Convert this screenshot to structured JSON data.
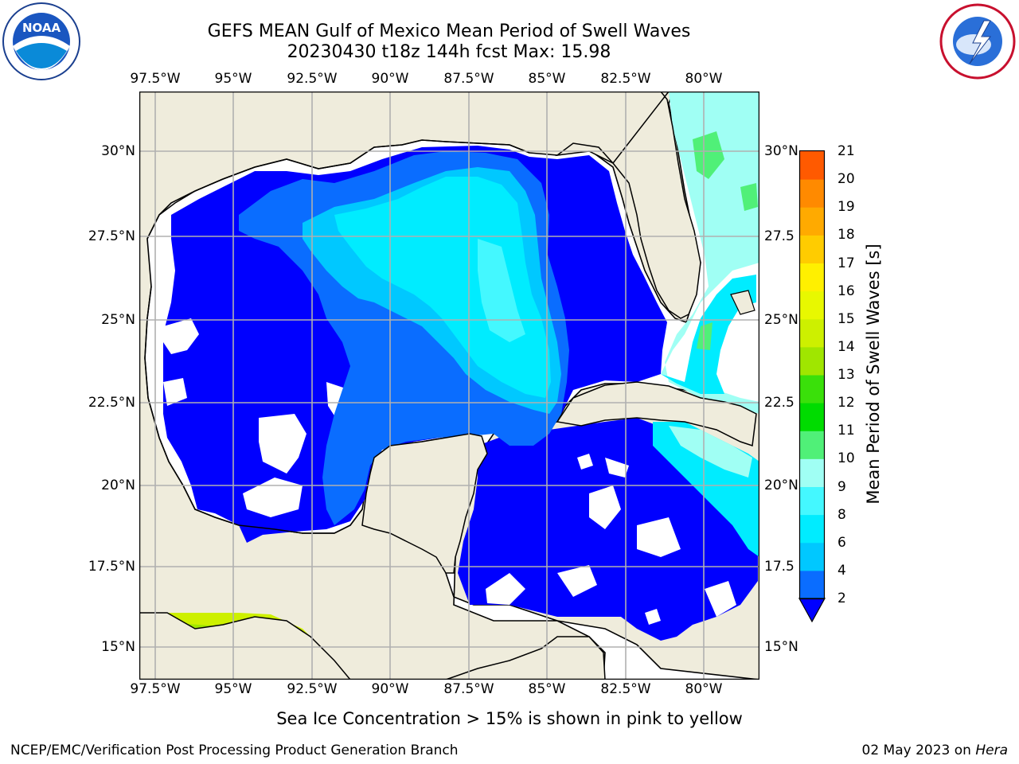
{
  "header": {
    "title": "GEFS MEAN Gulf of Mexico Mean Period of Swell Waves",
    "subtitle": "20230430 t18z 144h fcst   Max: 15.98"
  },
  "logos": {
    "left": {
      "icon": "noaa-logo",
      "text": "NOAA",
      "ring_text": "NATIONAL OCEANIC AND ATMOSPHERIC ADMINISTRATION · U.S. DEPARTMENT OF COMMERCE"
    },
    "right": {
      "icon": "nws-logo",
      "ring_text": "NATIONAL WEATHER SERVICE"
    }
  },
  "map": {
    "longitude_ticks": [
      "97.5°W",
      "95°W",
      "92.5°W",
      "90°W",
      "87.5°W",
      "85°W",
      "82.5°W",
      "80°W"
    ],
    "latitude_ticks_left": [
      "30°N",
      "27.5°N",
      "25°N",
      "22.5°N",
      "20°N",
      "17.5°N",
      "15°N"
    ],
    "latitude_ticks_right": [
      "30°N",
      "27.5",
      "25°N",
      "22.5",
      "20°N",
      "17.5",
      "15°N"
    ],
    "lon_range": [
      -98,
      -78
    ],
    "lat_range": [
      14,
      32
    ],
    "grid": true,
    "land_color": "#efecdc",
    "ocean_fill": "swell-period contours"
  },
  "colorbar": {
    "label": "Mean Period of Swell Waves [s]",
    "ticks": [
      "2",
      "4",
      "6",
      "8",
      "9",
      "10",
      "11",
      "12",
      "13",
      "14",
      "15",
      "16",
      "17",
      "18",
      "19",
      "20",
      "21"
    ],
    "colors": [
      "#0a6dff",
      "#00c8ff",
      "#00ecff",
      "#44f8ff",
      "#a0fff4",
      "#50f078",
      "#00dc00",
      "#3ae00a",
      "#a0e600",
      "#cdf000",
      "#e8f800",
      "#fff000",
      "#ffcc00",
      "#ffaa00",
      "#ff8a00",
      "#ff5a00",
      "#ff2a00",
      "#ff0000"
    ],
    "extend_min_color": "#0000ff"
  },
  "notes": {
    "sea_ice": "Sea Ice Concentration > 15% is shown in pink to yellow"
  },
  "footer": {
    "left": "NCEP/EMC/Verification Post Processing Product Generation Branch",
    "date": "02 May 2023 on ",
    "host": "Hera"
  }
}
